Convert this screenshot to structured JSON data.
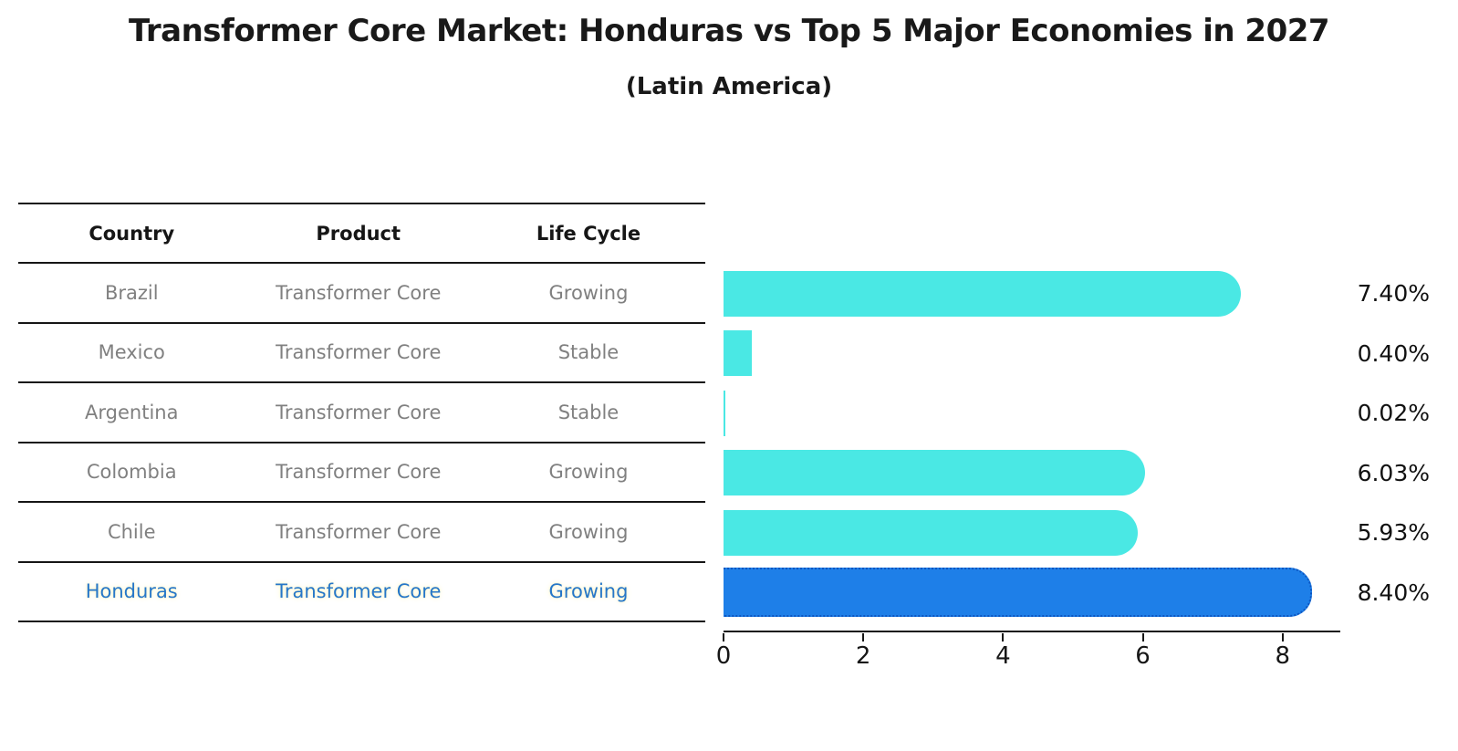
{
  "title": "Transformer Core Market: Honduras vs Top 5 Major Economies in 2027",
  "subtitle": "(Latin America)",
  "colors": {
    "bar_default": "#4ae8e4",
    "bar_highlight": "#1e7fe8",
    "bar_highlight_border": "#0d55c0",
    "table_text": "#808080",
    "highlight_text": "#2677c9",
    "heading_text": "#161616"
  },
  "table": {
    "headers": {
      "country": "Country",
      "product": "Product",
      "life_cycle": "Life Cycle"
    },
    "rows": [
      {
        "country": "Brazil",
        "product": "Transformer Core",
        "life_cycle": "Growing"
      },
      {
        "country": "Mexico",
        "product": "Transformer Core",
        "life_cycle": "Stable"
      },
      {
        "country": "Argentina",
        "product": "Transformer Core",
        "life_cycle": "Stable"
      },
      {
        "country": "Colombia",
        "product": "Transformer Core",
        "life_cycle": "Growing"
      },
      {
        "country": "Chile",
        "product": "Transformer Core",
        "life_cycle": "Growing"
      },
      {
        "country": "Honduras",
        "product": "Transformer Core",
        "life_cycle": "Growing"
      }
    ]
  },
  "chart_data": {
    "type": "bar",
    "orientation": "horizontal",
    "categories": [
      "Brazil",
      "Mexico",
      "Argentina",
      "Colombia",
      "Chile",
      "Honduras"
    ],
    "values": [
      7.4,
      0.4,
      0.02,
      6.03,
      5.93,
      8.4
    ],
    "labels": [
      "7.40%",
      "0.40%",
      "0.02%",
      "6.03%",
      "5.93%",
      "8.40%"
    ],
    "highlight_category": "Honduras",
    "title": "Transformer Core Market: Honduras vs Top 5 Major Economies in 2027 (Latin America)",
    "xlabel": "",
    "ylabel": "",
    "xlim": [
      0,
      8.8
    ],
    "xticks": [
      0,
      2,
      4,
      6,
      8
    ],
    "grid": false,
    "legend": false
  }
}
